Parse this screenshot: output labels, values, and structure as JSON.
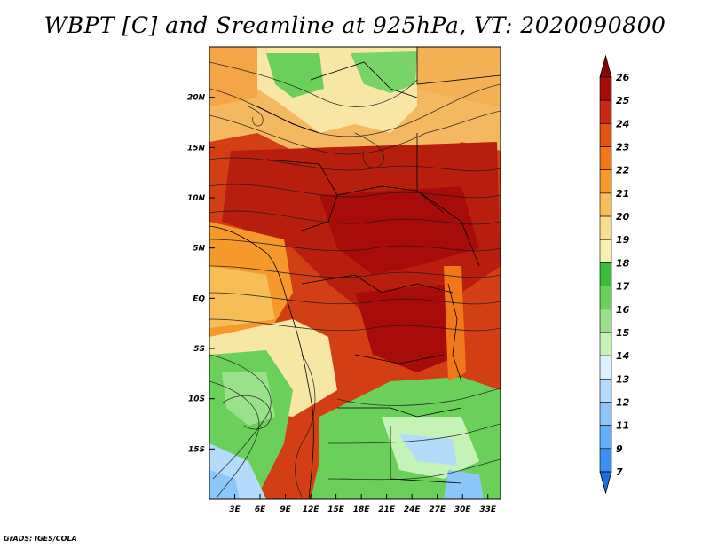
{
  "title": "WBPT [C] and Sreamline at 925hPa, VT: 2020090800",
  "credit": "GrADS: IGES/COLA",
  "chart_data": {
    "type": "heatmap",
    "title": "WBPT [C] and Sreamline at 925hPa, VT: 2020090800",
    "x_ticks": [
      "3E",
      "6E",
      "9E",
      "12E",
      "15E",
      "18E",
      "21E",
      "24E",
      "27E",
      "30E",
      "33E"
    ],
    "x_tick_values": [
      3,
      6,
      9,
      12,
      15,
      18,
      21,
      24,
      27,
      30,
      33
    ],
    "y_ticks": [
      "20N",
      "15N",
      "10N",
      "5N",
      "EQ",
      "5S",
      "10S",
      "15S"
    ],
    "y_tick_values": [
      20,
      15,
      10,
      5,
      0,
      -5,
      -10,
      -15
    ],
    "xlim": [
      0,
      34.5
    ],
    "ylim": [
      -20,
      25
    ],
    "colorbar": {
      "labels": [
        "7",
        "9",
        "11",
        "12",
        "13",
        "14",
        "15",
        "16",
        "17",
        "18",
        "19",
        "20",
        "21",
        "22",
        "23",
        "24",
        "25",
        "26"
      ],
      "colors": [
        "#1f6de0",
        "#3a8ff0",
        "#62aef7",
        "#8cc6fa",
        "#b4dafc",
        "#dcf0fd",
        "#c6f2b8",
        "#9be08a",
        "#6ad05a",
        "#3cbd3a",
        "#f8f0b0",
        "#f9dc8c",
        "#f7be58",
        "#f59a2a",
        "#f07818",
        "#e25414",
        "#cc2a10",
        "#a80c0a",
        "#8a0606"
      ]
    }
  }
}
